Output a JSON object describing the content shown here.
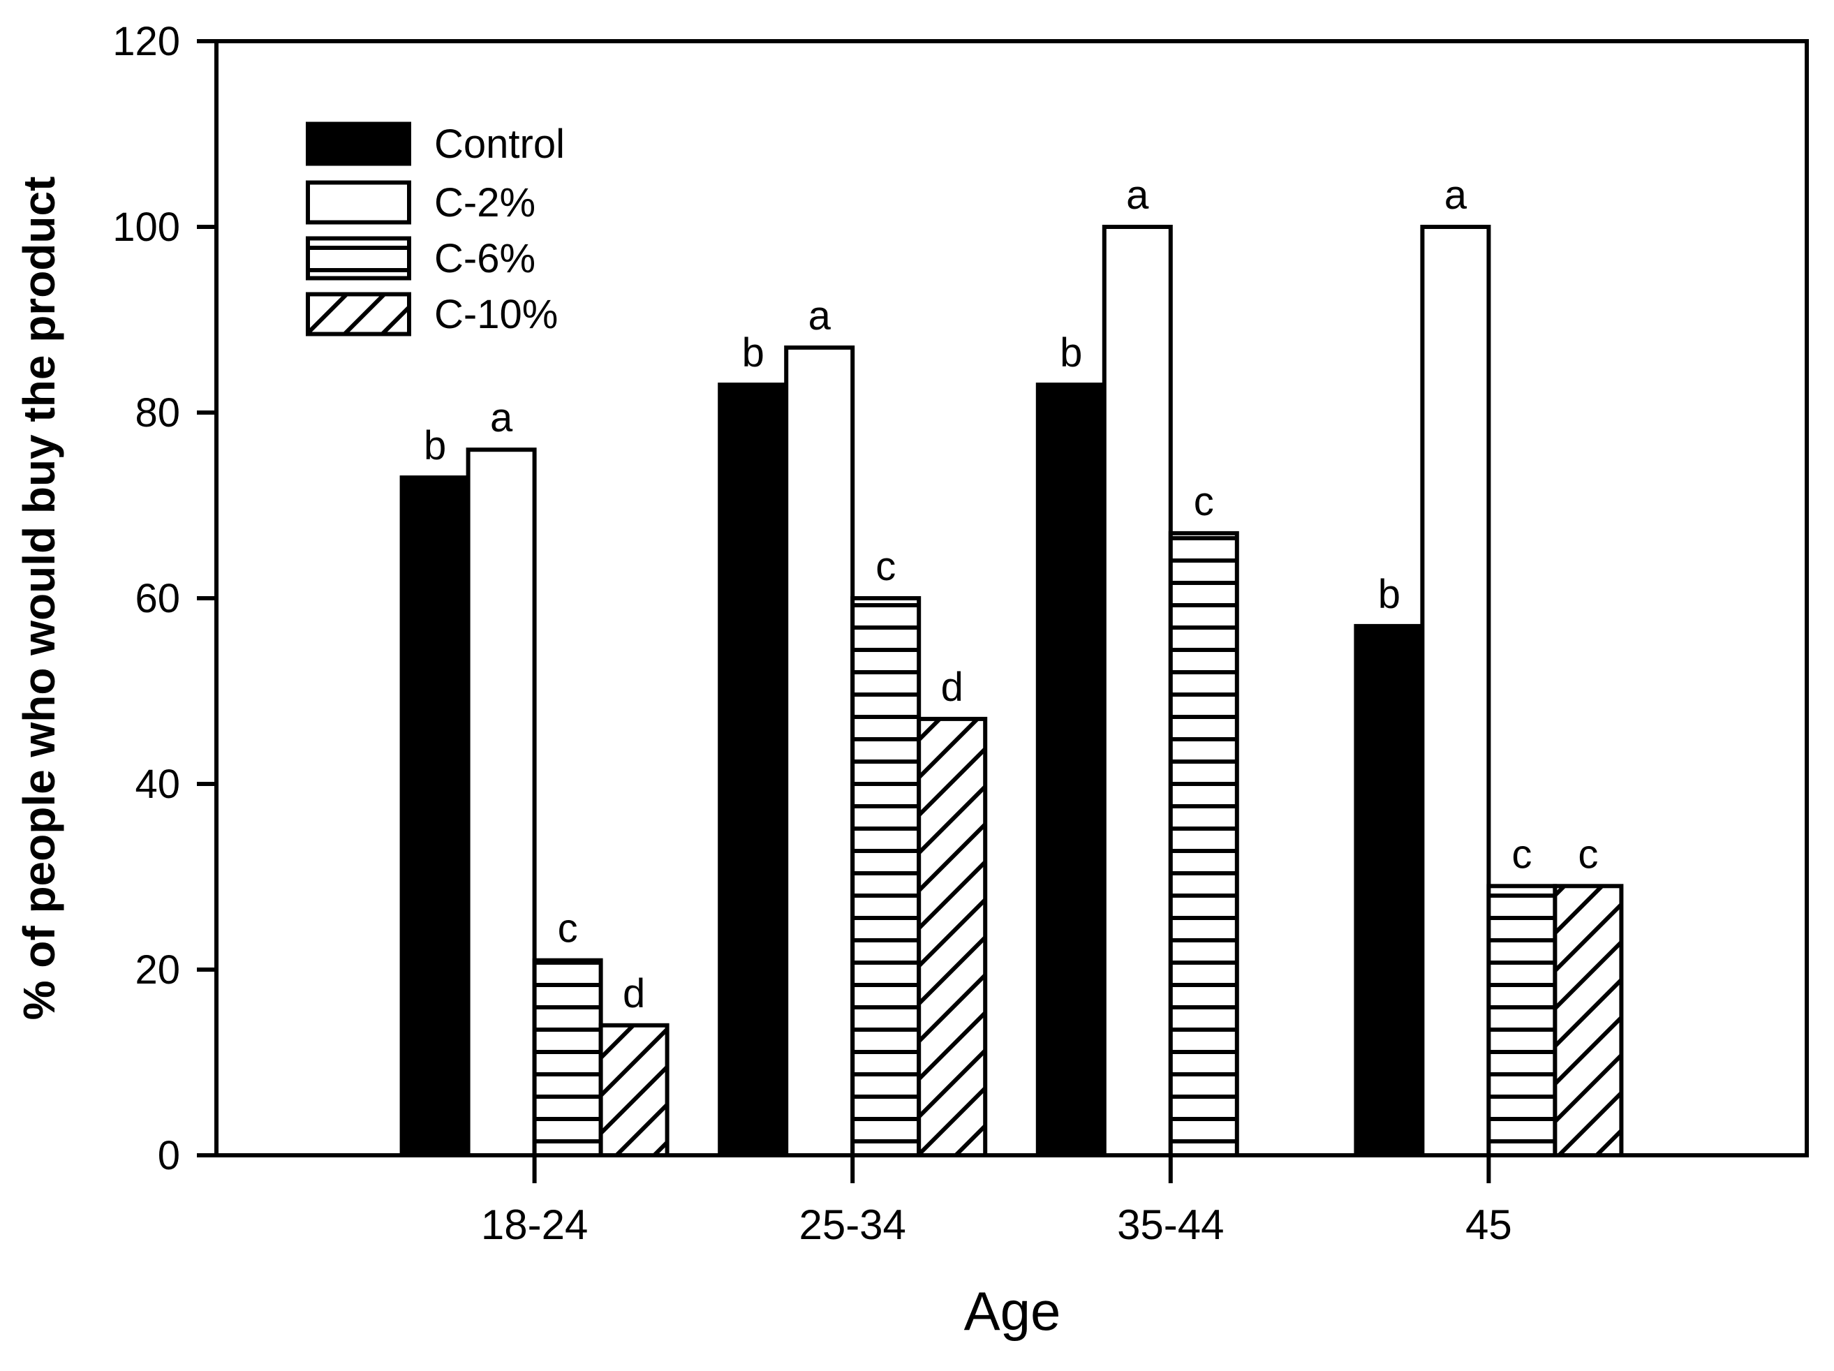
{
  "chart_data": {
    "type": "bar",
    "title": "",
    "xlabel": "Age",
    "ylabel": "% of people who would buy the product",
    "categories": [
      "18-24",
      "25-34",
      "35-44",
      "45"
    ],
    "y_ticks": [
      0,
      20,
      40,
      60,
      80,
      100,
      120
    ],
    "ylim": [
      0,
      120
    ],
    "grid": false,
    "legend_position": "upper-left-inside",
    "series": [
      {
        "name": "Control",
        "pattern": "solid-black",
        "values": [
          73,
          83,
          83,
          57
        ],
        "letters": [
          "b",
          "b",
          "b",
          "b"
        ]
      },
      {
        "name": "C-2%",
        "pattern": "solid-white",
        "values": [
          76,
          87,
          100,
          100
        ],
        "letters": [
          "a",
          "a",
          "a",
          "a"
        ]
      },
      {
        "name": "C-6%",
        "pattern": "horizontal-stripes",
        "values": [
          21,
          60,
          67,
          29
        ],
        "letters": [
          "c",
          "c",
          "c",
          "c"
        ]
      },
      {
        "name": "C-10%",
        "pattern": "diagonal-stripes",
        "values": [
          14,
          47,
          null,
          29
        ],
        "letters": [
          "d",
          "d",
          null,
          "c"
        ]
      }
    ],
    "colors": {
      "foreground": "#000000",
      "background": "#ffffff"
    }
  }
}
